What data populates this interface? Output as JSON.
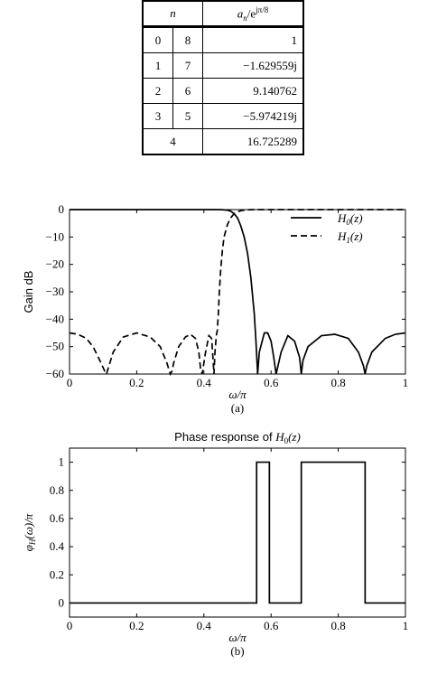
{
  "table": {
    "header_n": "n",
    "header_an": "a",
    "header_an_sub": "n",
    "header_an_rest": "/e",
    "header_an_exp": "jπ/8",
    "rows": [
      {
        "n1": "0",
        "n2": "8",
        "value": "1"
      },
      {
        "n1": "1",
        "n2": "7",
        "value": "−1.629559j"
      },
      {
        "n1": "2",
        "n2": "6",
        "value": "9.140762"
      },
      {
        "n1": "3",
        "n2": "5",
        "value": "−5.974219j"
      },
      {
        "n_merged": "4",
        "value": "16.725289"
      }
    ]
  },
  "chart_data": [
    {
      "type": "line",
      "title": "",
      "xlabel": "ω/π",
      "ylabel": "Gain dB",
      "caption": "(a)",
      "xlim": [
        0,
        1
      ],
      "ylim": [
        -60,
        0
      ],
      "xticks": [
        "0",
        "0.2",
        "0.4",
        "0.6",
        "0.8",
        "1"
      ],
      "yticks": [
        "0",
        "−10",
        "−20",
        "−30",
        "−40",
        "−50",
        "−60"
      ],
      "legend_position": "top-right",
      "series": [
        {
          "name": "H0(z)",
          "style": "solid",
          "x": [
            0,
            0.2,
            0.4,
            0.45,
            0.47,
            0.48,
            0.49,
            0.5,
            0.51,
            0.52,
            0.53,
            0.54,
            0.55,
            0.555,
            0.56,
            0.565,
            0.58,
            0.59,
            0.6,
            0.608,
            0.615,
            0.63,
            0.65,
            0.67,
            0.685,
            0.69,
            0.695,
            0.71,
            0.75,
            0.79,
            0.83,
            0.86,
            0.875,
            0.88,
            0.885,
            0.9,
            0.94,
            0.97,
            1.0
          ],
          "y": [
            0,
            0,
            0,
            0,
            -0.2,
            -0.6,
            -1.5,
            -3,
            -6,
            -10,
            -16,
            -25,
            -38,
            -48,
            -60,
            -52,
            -45,
            -45,
            -48,
            -54,
            -60,
            -52,
            -46,
            -48,
            -54,
            -60,
            -55,
            -50,
            -46,
            -45.5,
            -47,
            -52,
            -57,
            -60,
            -57,
            -52,
            -47,
            -45.5,
            -45
          ]
        },
        {
          "name": "H1(z)",
          "style": "dashed",
          "x": [
            0,
            0.025,
            0.05,
            0.07,
            0.09,
            0.105,
            0.11,
            0.115,
            0.13,
            0.16,
            0.2,
            0.24,
            0.27,
            0.29,
            0.3,
            0.305,
            0.31,
            0.325,
            0.345,
            0.36,
            0.375,
            0.385,
            0.39,
            0.395,
            0.405,
            0.415,
            0.423,
            0.427,
            0.43,
            0.433,
            0.437,
            0.44,
            0.443,
            0.446,
            0.45,
            0.455,
            0.46,
            0.47,
            0.48,
            0.49,
            0.5,
            0.51,
            0.52,
            0.53,
            0.545,
            0.55,
            0.6,
            0.8,
            1.0
          ],
          "y": [
            -45,
            -45.5,
            -47,
            -50,
            -55,
            -59,
            -60,
            -58,
            -52,
            -46.5,
            -45,
            -46.5,
            -50,
            -56,
            -60,
            -59,
            -56,
            -50,
            -46.5,
            -45.5,
            -47,
            -52,
            -58,
            -60,
            -52,
            -46,
            -47,
            -54,
            -60,
            -52,
            -46,
            -44,
            -38,
            -30,
            -22,
            -15,
            -10,
            -5.5,
            -3,
            -1.5,
            -0.8,
            -0.4,
            -0.2,
            -0.1,
            0,
            0,
            0,
            0,
            0
          ]
        }
      ]
    },
    {
      "type": "line",
      "title": "Phase response of H0(z)",
      "xlabel": "ω/π",
      "ylabel": "φH(ω)/π",
      "caption": "(b)",
      "xlim": [
        0,
        1
      ],
      "ylim": [
        -0.1,
        1.1
      ],
      "xticks": [
        "0",
        "0.2",
        "0.4",
        "0.6",
        "0.8",
        "1"
      ],
      "yticks": [
        "0",
        "0.2",
        "0.4",
        "0.6",
        "0.8",
        "1"
      ],
      "series": [
        {
          "name": "",
          "style": "solid",
          "x": [
            0,
            0.557,
            0.557,
            0.595,
            0.595,
            0.69,
            0.69,
            0.88,
            0.88,
            1.0
          ],
          "y": [
            0,
            0,
            1,
            1,
            0,
            0,
            1,
            1,
            0,
            0
          ]
        }
      ]
    }
  ]
}
